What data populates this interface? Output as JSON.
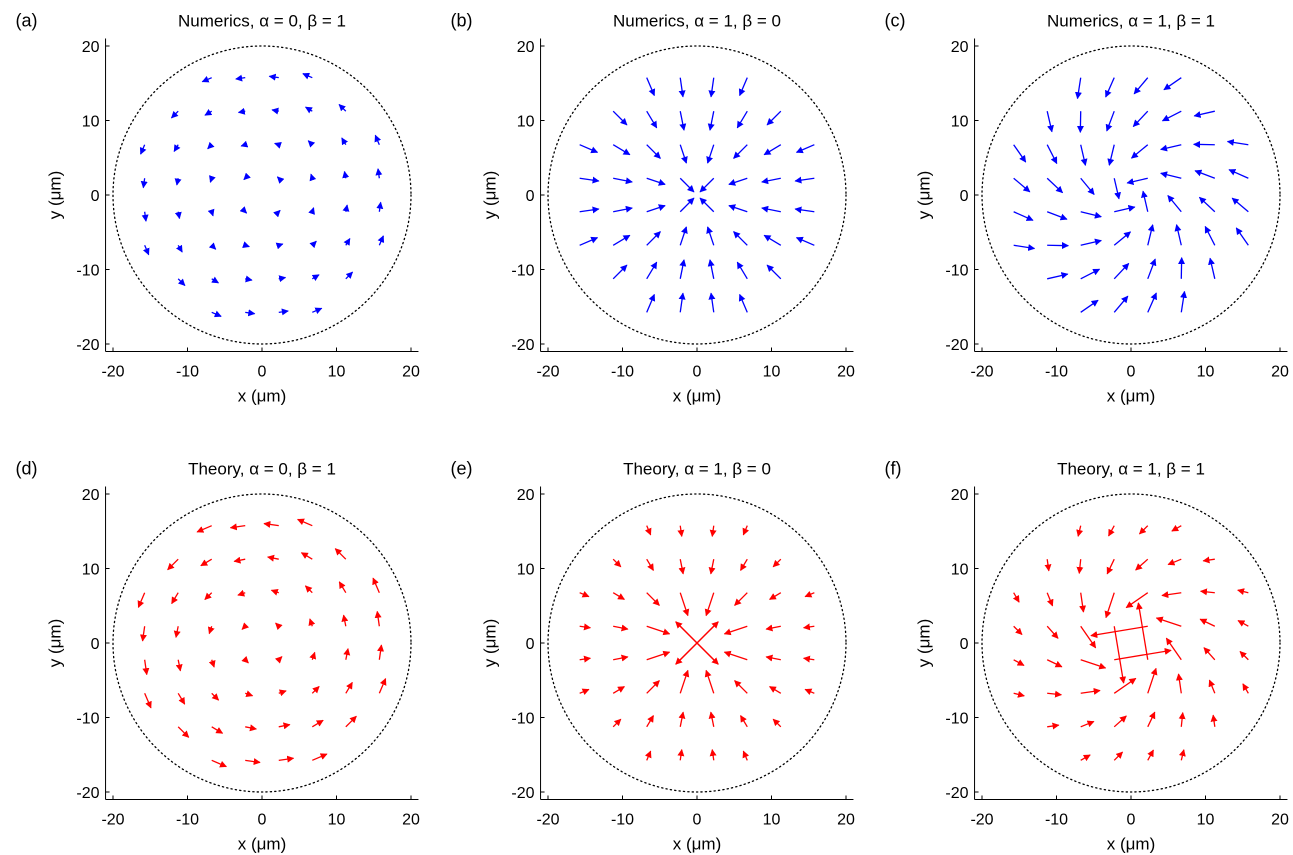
{
  "chart_data": [
    {
      "type": "quiver",
      "panel_label": "(a)",
      "title": "Numerics, α = 0, β = 1",
      "xlabel": "x (μm)",
      "ylabel": "y (μm)",
      "xlim": [
        -20,
        20
      ],
      "ylim": [
        -20,
        20
      ],
      "xticks": [
        -20,
        -10,
        0,
        10,
        20
      ],
      "yticks": [
        -20,
        -10,
        0,
        10,
        20
      ],
      "boundary": {
        "shape": "circle",
        "radius": 20,
        "style": "dotted"
      },
      "arrow_color": "#0000ff",
      "field": {
        "alpha": 0,
        "beta": 1,
        "model": "numerics",
        "reference_radius": 20
      },
      "grid_spacing": 4.5
    },
    {
      "type": "quiver",
      "panel_label": "(b)",
      "title": "Numerics, α = 1, β = 0",
      "xlabel": "x (μm)",
      "ylabel": "y (μm)",
      "xlim": [
        -20,
        20
      ],
      "ylim": [
        -20,
        20
      ],
      "xticks": [
        -20,
        -10,
        0,
        10,
        20
      ],
      "yticks": [
        -20,
        -10,
        0,
        10,
        20
      ],
      "boundary": {
        "shape": "circle",
        "radius": 20,
        "style": "dotted"
      },
      "arrow_color": "#0000ff",
      "field": {
        "alpha": 1,
        "beta": 0,
        "model": "numerics",
        "reference_radius": 20
      },
      "grid_spacing": 4.5
    },
    {
      "type": "quiver",
      "panel_label": "(c)",
      "title": "Numerics, α = 1, β = 1",
      "xlabel": "x (μm)",
      "ylabel": "y (μm)",
      "xlim": [
        -20,
        20
      ],
      "ylim": [
        -20,
        20
      ],
      "xticks": [
        -20,
        -10,
        0,
        10,
        20
      ],
      "yticks": [
        -20,
        -10,
        0,
        10,
        20
      ],
      "boundary": {
        "shape": "circle",
        "radius": 20,
        "style": "dotted"
      },
      "arrow_color": "#0000ff",
      "field": {
        "alpha": 1,
        "beta": 1,
        "model": "numerics",
        "reference_radius": 20
      },
      "grid_spacing": 4.5
    },
    {
      "type": "quiver",
      "panel_label": "(d)",
      "title": "Theory, α = 0, β = 1",
      "xlabel": "x (μm)",
      "ylabel": "y (μm)",
      "xlim": [
        -20,
        20
      ],
      "ylim": [
        -20,
        20
      ],
      "xticks": [
        -20,
        -10,
        0,
        10,
        20
      ],
      "yticks": [
        -20,
        -10,
        0,
        10,
        20
      ],
      "boundary": {
        "shape": "circle",
        "radius": 20,
        "style": "dotted"
      },
      "arrow_color": "#ff0000",
      "field": {
        "alpha": 0,
        "beta": 1,
        "model": "theory",
        "reference_radius": 20
      },
      "grid_spacing": 4.5
    },
    {
      "type": "quiver",
      "panel_label": "(e)",
      "title": "Theory, α = 1, β = 0",
      "xlabel": "x (μm)",
      "ylabel": "y (μm)",
      "xlim": [
        -20,
        20
      ],
      "ylim": [
        -20,
        20
      ],
      "xticks": [
        -20,
        -10,
        0,
        10,
        20
      ],
      "yticks": [
        -20,
        -10,
        0,
        10,
        20
      ],
      "boundary": {
        "shape": "circle",
        "radius": 20,
        "style": "dotted"
      },
      "arrow_color": "#ff0000",
      "field": {
        "alpha": 1,
        "beta": 0,
        "model": "theory",
        "reference_radius": 20
      },
      "grid_spacing": 4.5
    },
    {
      "type": "quiver",
      "panel_label": "(f)",
      "title": "Theory, α = 1, β = 1",
      "xlabel": "x (μm)",
      "ylabel": "y (μm)",
      "xlim": [
        -20,
        20
      ],
      "ylim": [
        -20,
        20
      ],
      "xticks": [
        -20,
        -10,
        0,
        10,
        20
      ],
      "yticks": [
        -20,
        -10,
        0,
        10,
        20
      ],
      "boundary": {
        "shape": "circle",
        "radius": 20,
        "style": "dotted"
      },
      "arrow_color": "#ff0000",
      "field": {
        "alpha": 1,
        "beta": 1,
        "model": "theory",
        "reference_radius": 20
      },
      "grid_spacing": 4.5
    }
  ]
}
